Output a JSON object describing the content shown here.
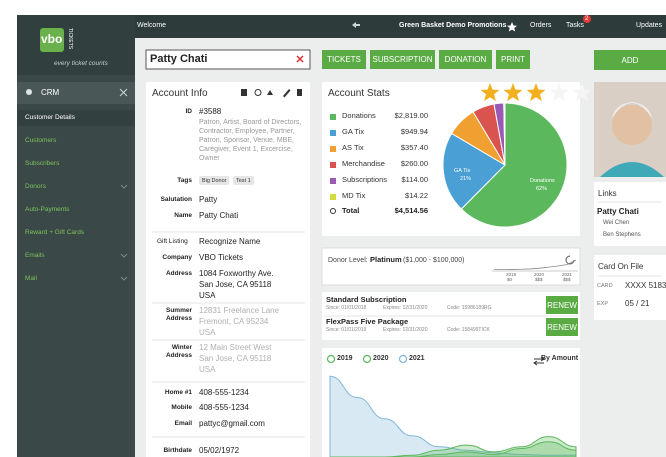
{
  "topbar": {
    "welcome": "Welcome",
    "org": "Green Basket Demo Promotions",
    "orders": "Orders",
    "tasks": "Tasks",
    "tasks_badge": 2,
    "updates": "Updates"
  },
  "sidebar": {
    "logo": "vbo",
    "logo_sub": "TICKETS",
    "tagline": "every ticket counts",
    "section": "CRM",
    "items": [
      {
        "label": "Customer Details",
        "active": true,
        "expandable": false
      },
      {
        "label": "Customers",
        "active": false,
        "expandable": false
      },
      {
        "label": "Subscribers",
        "active": false,
        "expandable": false
      },
      {
        "label": "Donors",
        "active": false,
        "expandable": true
      },
      {
        "label": "Auto-Payments",
        "active": false,
        "expandable": false
      },
      {
        "label": "Reward + Gift Cards",
        "active": false,
        "expandable": false
      },
      {
        "label": "Emails",
        "active": false,
        "expandable": true
      },
      {
        "label": "Mail",
        "active": false,
        "expandable": true
      }
    ]
  },
  "search": {
    "value": "Patty Chati"
  },
  "actions": [
    "TICKETS",
    "SUBSCRIPTION",
    "DONATION",
    "PRINT"
  ],
  "add": "ADD",
  "account_info": {
    "title": "Account Info",
    "fields": [
      {
        "label": "ID",
        "lines": [
          "#3588"
        ],
        "note": "Patron, Artist, Board of Directors, Contractor, Employee, Partner, Patron, Sponsor, Venue, MBE, Caregiver, Event 1, Excercise, Owner"
      },
      {
        "label": "Tags",
        "chips": [
          "Big Donor",
          "Test 1"
        ]
      },
      {
        "label": "Salutation",
        "lines": [
          "Patty"
        ]
      },
      {
        "label": "Name",
        "lines": [
          "Patty Chati"
        ]
      },
      {
        "label": "Gift Listing",
        "lines": [
          "Recognize Name"
        ],
        "plain": true
      },
      {
        "label": "Company",
        "lines": [
          "VBO Tickets"
        ]
      },
      {
        "label": "Address",
        "lines": [
          "1084 Foxworthy Ave.",
          "San Jose, CA 95118",
          "USA"
        ]
      },
      {
        "label": "Summer Address",
        "lines": [
          "12831 Freelance Lane",
          "Fremont, CA 95234",
          "USA"
        ],
        "muted": true
      },
      {
        "label": "Winter Address",
        "lines": [
          "12 Main Street West",
          "San Jose, CA 95118",
          "USA"
        ],
        "muted": true
      },
      {
        "label": "Home #1",
        "lines": [
          "408-555-1234"
        ]
      },
      {
        "label": "Mobile",
        "lines": [
          "408-555-1234"
        ]
      },
      {
        "label": "Email",
        "lines": [
          "pattyc@gmail.com"
        ]
      },
      {
        "label": "Birthdate",
        "lines": [
          "05/02/1972"
        ]
      }
    ]
  },
  "account_stats": {
    "title": "Account Stats",
    "rating": 3,
    "rating_max": 5,
    "rows": [
      {
        "name": "Donations",
        "color": "#5cb85c",
        "value": 2819.0,
        "label": "$2,819.00"
      },
      {
        "name": "GA Tix",
        "color": "#4a9fd5",
        "value": 949.94,
        "label": "$949.94"
      },
      {
        "name": "AS Tix",
        "color": "#f0a030",
        "value": 357.4,
        "label": "$357.40"
      },
      {
        "name": "Merchandise",
        "color": "#d9534f",
        "value": 260.0,
        "label": "$260.00"
      },
      {
        "name": "Subscriptions",
        "color": "#9b59b6",
        "value": 114.0,
        "label": "$114.00"
      },
      {
        "name": "MD Tix",
        "color": "#d4dc3c",
        "value": 14.22,
        "label": "$14.22"
      }
    ],
    "total": {
      "name": "Total",
      "value": 4514.56,
      "label": "$4,514.56"
    },
    "pie_labels": [
      {
        "name": "GA Tix",
        "pct": "21%"
      },
      {
        "name": "Donations",
        "pct": "62%"
      }
    ]
  },
  "donor_level": {
    "label": "Donor Level:",
    "level": "Platinum",
    "range": "($1,000 - $100,000)",
    "trend": {
      "values": [
        2,
        2,
        3,
        4,
        6,
        10,
        16,
        22,
        30,
        55
      ],
      "ylim": [
        0,
        100
      ]
    },
    "ticks": [
      {
        "year": "2019",
        "amount": "$0"
      },
      {
        "year": "2020",
        "amount": "$$$"
      },
      {
        "year": "2021",
        "amount": "$$$"
      }
    ]
  },
  "subscriptions": [
    {
      "name": "Standard Subscription",
      "since": "Since: 01/01/2018",
      "expires": "Expires: 12/31/2020",
      "code": "Code: 15986189RG",
      "action": "RENEW"
    },
    {
      "name": "FlexPass Five Package",
      "since": "Since: 01/01/2019",
      "expires": "Expires: 12/31/2020",
      "code": "Code: 158499TICK",
      "action": "RENEW"
    }
  ],
  "amount_chart": {
    "sort": "By Amount",
    "ylim": [
      0,
      100
    ],
    "series": [
      {
        "name": "2019",
        "color": "#5cb85c",
        "values": [
          0,
          0,
          0,
          0,
          3,
          6,
          3,
          10,
          18,
          8
        ]
      },
      {
        "name": "2020",
        "color": "#5cb85c",
        "values": [
          0,
          0,
          0,
          2,
          8,
          14,
          6,
          12,
          24,
          12
        ]
      },
      {
        "name": "2021",
        "color": "#7fb6dc",
        "values": [
          95,
          70,
          45,
          25,
          12,
          8,
          5,
          3,
          2,
          2
        ]
      }
    ]
  },
  "links": {
    "title": "Links",
    "name": "Patty Chati",
    "related": [
      "Wei Chen",
      "Ben Stephens"
    ]
  },
  "card": {
    "title": "Card On File",
    "rows": [
      {
        "label": "CARD",
        "value": "XXXX 5183"
      },
      {
        "label": "EXP",
        "value": "05 / 21"
      }
    ]
  }
}
